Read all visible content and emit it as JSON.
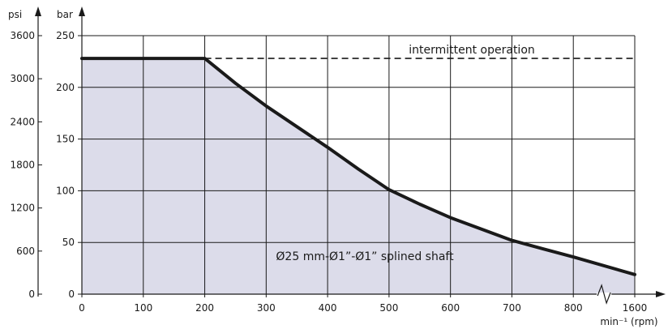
{
  "chart_data": {
    "type": "area",
    "title": "",
    "x_unit_label": "min⁻¹ (rpm)",
    "y_left_unit": "psi",
    "y_right_unit": "bar",
    "x_ticks": [
      "0",
      "100",
      "200",
      "300",
      "400",
      "500",
      "600",
      "700",
      "800",
      "1600"
    ],
    "x_values_rpm": [
      0,
      100,
      200,
      300,
      400,
      500,
      600,
      700,
      800,
      1600
    ],
    "axis_break_between": [
      800,
      1600
    ],
    "bar_ticks": [
      0,
      50,
      100,
      150,
      200,
      250
    ],
    "psi_ticks": [
      0,
      600,
      1200,
      1800,
      2400,
      3000,
      3600
    ],
    "bar_range": [
      0,
      250
    ],
    "psi_range": [
      0,
      3600
    ],
    "grid": true,
    "series": [
      {
        "style": "solid-thick",
        "filled": true,
        "points": [
          {
            "rpm": 0,
            "bar": 228
          },
          {
            "rpm": 200,
            "bar": 228
          },
          {
            "rpm": 250,
            "bar": 204
          },
          {
            "rpm": 300,
            "bar": 182
          },
          {
            "rpm": 350,
            "bar": 162
          },
          {
            "rpm": 400,
            "bar": 142
          },
          {
            "rpm": 450,
            "bar": 121
          },
          {
            "rpm": 500,
            "bar": 101
          },
          {
            "rpm": 550,
            "bar": 87
          },
          {
            "rpm": 600,
            "bar": 74
          },
          {
            "rpm": 650,
            "bar": 63
          },
          {
            "rpm": 700,
            "bar": 52
          },
          {
            "rpm": 750,
            "bar": 44
          },
          {
            "rpm": 800,
            "bar": 36
          },
          {
            "rpm": 1600,
            "bar": 19
          }
        ]
      },
      {
        "style": "dashed",
        "filled": false,
        "points": [
          {
            "rpm": 200,
            "bar": 228
          },
          {
            "rpm": 1600,
            "bar": 228
          }
        ]
      }
    ],
    "annotations": {
      "intermittent": "intermittent operation",
      "shaft": "Ø25 mm-Ø1”-Ø1” splined shaft"
    },
    "colors": {
      "fill": "#dcdcea",
      "line": "#1a1a1a",
      "grid": "#1a1a1a"
    }
  }
}
